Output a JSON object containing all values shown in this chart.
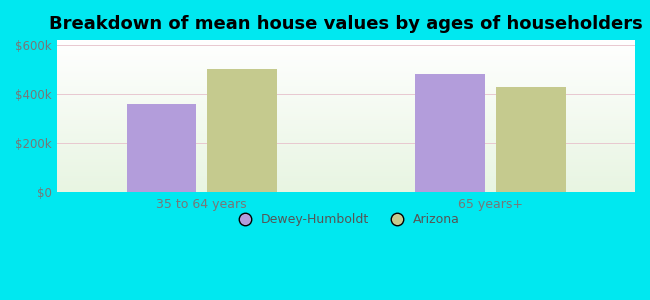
{
  "title": "Breakdown of mean house values by ages of householders",
  "categories": [
    "35 to 64 years",
    "65 years+"
  ],
  "dewey_values": [
    360000,
    480000
  ],
  "arizona_values": [
    500000,
    430000
  ],
  "dewey_color": "#b39ddb",
  "arizona_color": "#c5ca8e",
  "dewey_label": "Dewey-Humboldt",
  "arizona_label": "Arizona",
  "ylim": [
    0,
    620000
  ],
  "yticks": [
    0,
    200000,
    400000,
    600000
  ],
  "ytick_labels": [
    "$0",
    "$200k",
    "$400k",
    "$600k"
  ],
  "bg_color": "#00e8f0",
  "title_fontsize": 13,
  "bar_width": 0.12,
  "group_centers": [
    0.25,
    0.75
  ],
  "xlim": [
    0.0,
    1.0
  ]
}
